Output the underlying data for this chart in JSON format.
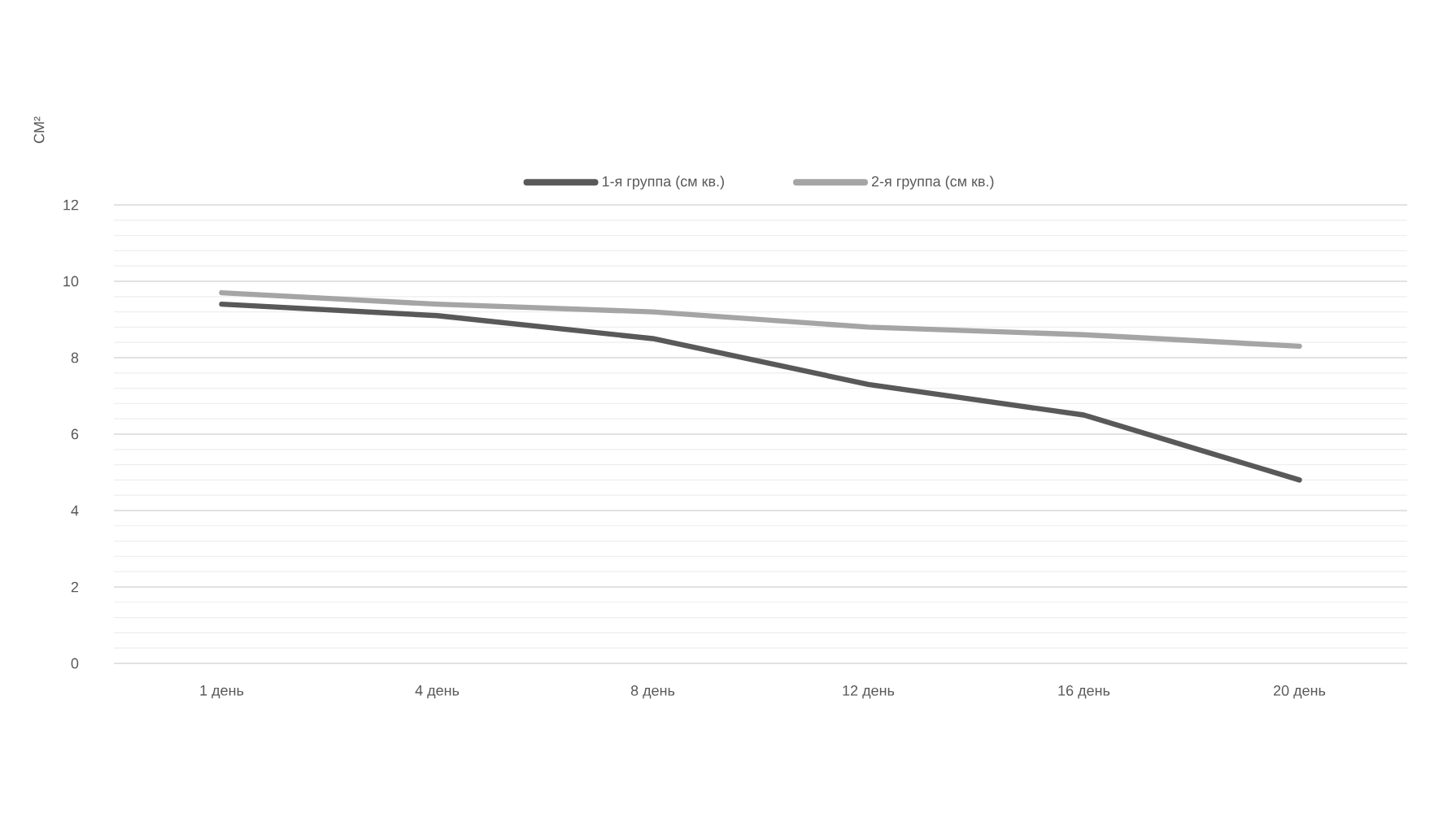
{
  "chart_data": {
    "type": "line",
    "ylabel": "СМ²",
    "categories": [
      "1 день",
      "4 день",
      "8 день",
      "12 день",
      "16 день",
      "20 день"
    ],
    "series": [
      {
        "name": "1-я группа (см кв.)",
        "color": "#595959",
        "values": [
          9.4,
          9.1,
          8.5,
          7.3,
          6.5,
          4.8
        ]
      },
      {
        "name": "2-я группа (см кв.)",
        "color": "#a5a5a5",
        "values": [
          9.7,
          9.4,
          9.2,
          8.8,
          8.6,
          8.3
        ]
      }
    ],
    "ylim": [
      0,
      12
    ],
    "yticks": [
      0,
      2,
      4,
      6,
      8,
      10,
      12
    ],
    "grid": "y",
    "legend": "top",
    "marker": "none",
    "line_style": "solid"
  }
}
